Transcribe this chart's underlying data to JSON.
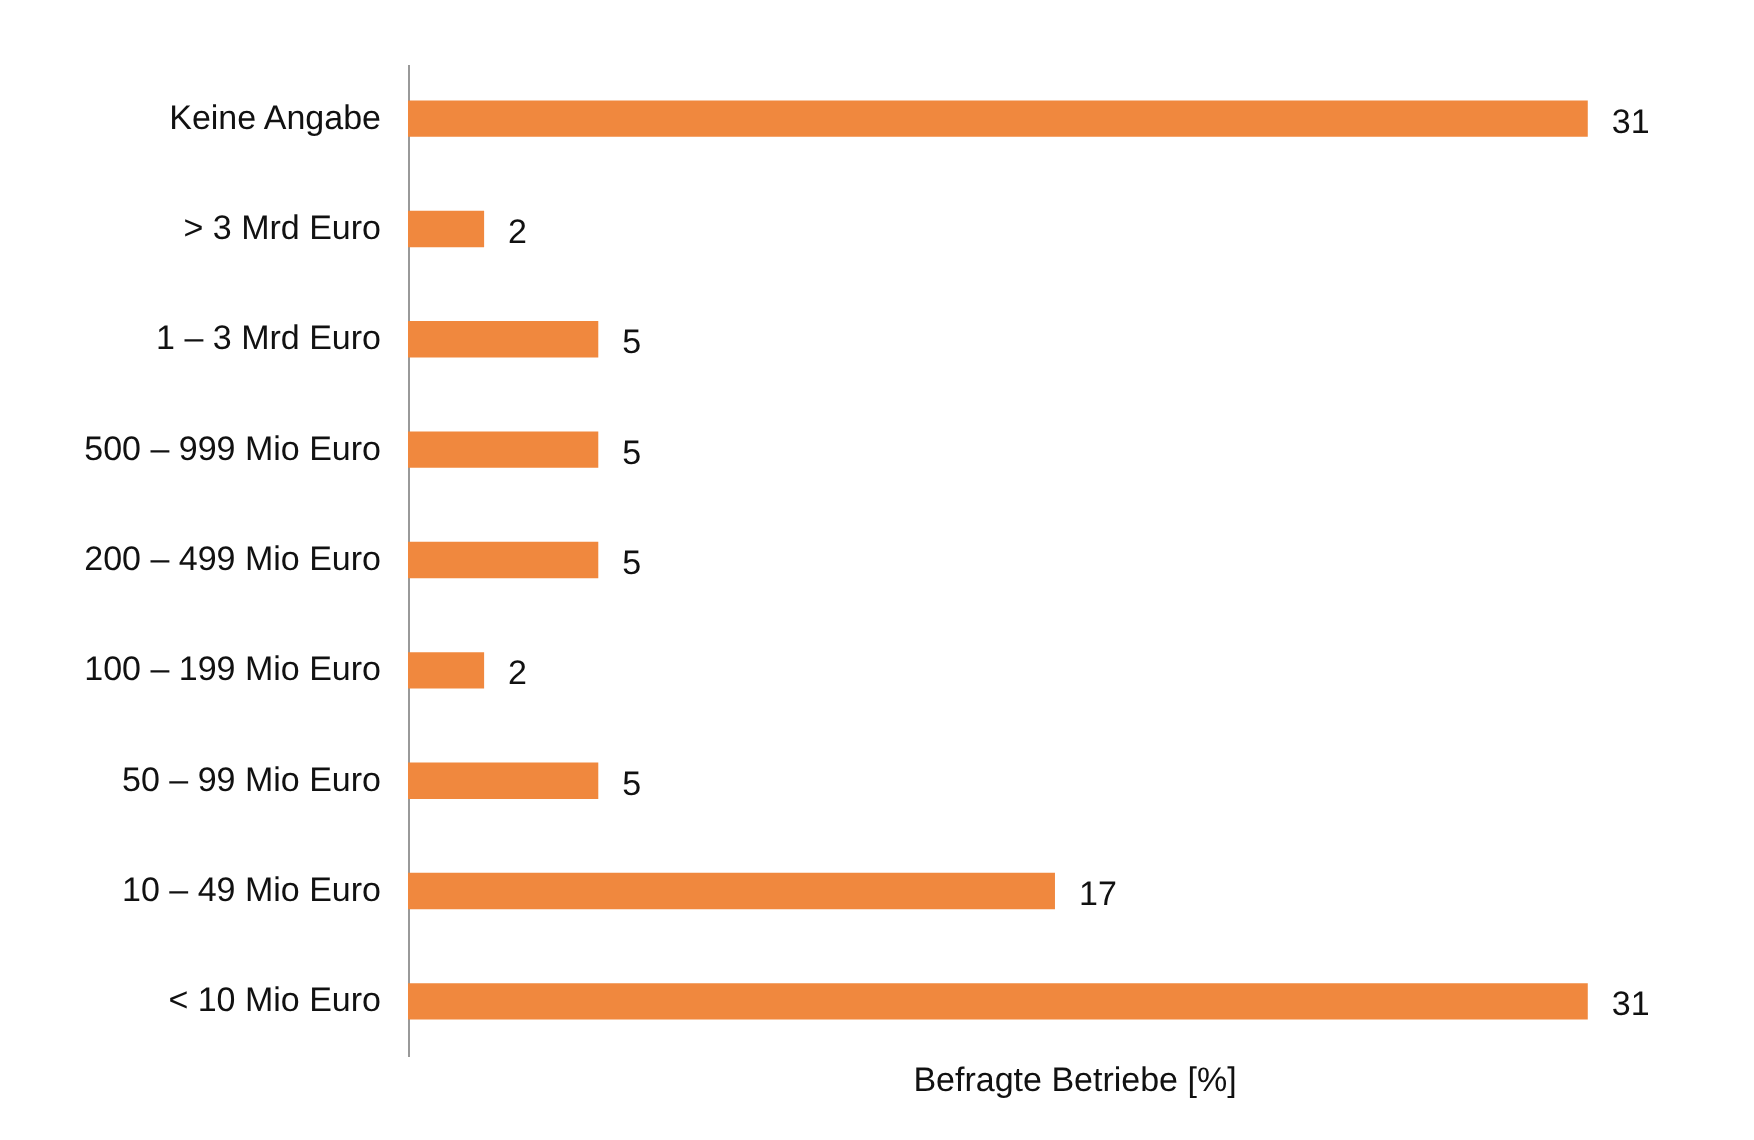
{
  "chart_data": {
    "type": "bar",
    "orientation": "horizontal",
    "xlabel": "Befragte Betriebe [%]",
    "categories": [
      "Keine Angabe",
      "> 3 Mrd Euro",
      "1 – 3 Mrd Euro",
      "500 – 999 Mio Euro",
      "200 – 499 Mio Euro",
      "100 – 199 Mio Euro",
      "50 – 99 Mio Euro",
      "10 – 49 Mio Euro",
      "< 10 Mio Euro"
    ],
    "values": [
      31,
      2,
      5,
      5,
      5,
      2,
      5,
      17,
      31
    ],
    "color": "#f0883e",
    "data_labels": true,
    "tick_labels": "y"
  }
}
